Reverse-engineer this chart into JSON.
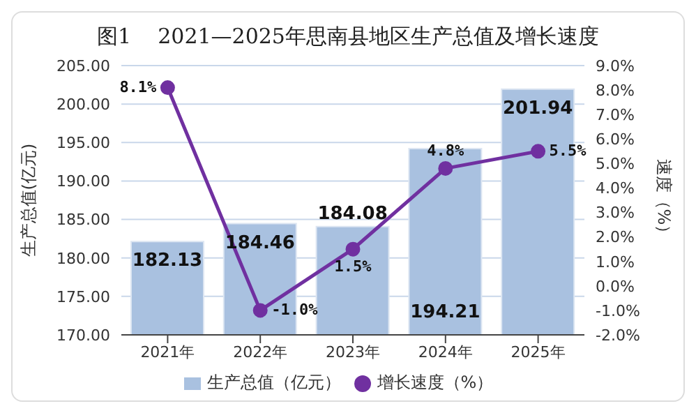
{
  "chart_data": {
    "type": "bar",
    "title": "图1    2021—2025年思南县地区生产总值及增长速度",
    "categories": [
      "2021年",
      "2022年",
      "2023年",
      "2024年",
      "2025年"
    ],
    "series": [
      {
        "name": "生产总值（亿元）",
        "color": "#a9c1e0",
        "values": [
          182.13,
          184.46,
          184.08,
          194.21,
          201.94
        ],
        "value_labels": [
          "182.13",
          "184.46",
          "184.08",
          "194.21",
          "201.94"
        ]
      },
      {
        "name": "增长速度（%）",
        "type": "line",
        "axis": "y2",
        "color": "#7030a0",
        "values": [
          8.1,
          -1.0,
          1.5,
          4.8,
          5.5
        ],
        "value_labels": [
          "8.1%",
          "-1.0%",
          "1.5%",
          "4.8%",
          "5.5%"
        ]
      }
    ],
    "ylabel": "生产总值(亿元)",
    "y2label": "速度（%）",
    "ylim": [
      170,
      205
    ],
    "yticks": [
      {
        "value": 170,
        "label": "170.00"
      },
      {
        "value": 175,
        "label": "175.00"
      },
      {
        "value": 180,
        "label": "180.00"
      },
      {
        "value": 185,
        "label": "185.00"
      },
      {
        "value": 190,
        "label": "190.00"
      },
      {
        "value": 195,
        "label": "195.00"
      },
      {
        "value": 200,
        "label": "200.00"
      },
      {
        "value": 205,
        "label": "205.00"
      }
    ],
    "y2lim": [
      -2,
      9
    ],
    "y2ticks": [
      {
        "value": -2,
        "label": "-2.0%"
      },
      {
        "value": -1,
        "label": "-1.0%"
      },
      {
        "value": 0,
        "label": "0.0%"
      },
      {
        "value": 1,
        "label": "1.0%"
      },
      {
        "value": 2,
        "label": "2.0%"
      },
      {
        "value": 3,
        "label": "3.0%"
      },
      {
        "value": 4,
        "label": "4.0%"
      },
      {
        "value": 5,
        "label": "5.0%"
      },
      {
        "value": 6,
        "label": "6.0%"
      },
      {
        "value": 7,
        "label": "7.0%"
      },
      {
        "value": 8,
        "label": "8.0%"
      },
      {
        "value": 9,
        "label": "9.0%"
      }
    ],
    "grid": "y",
    "legend": "bottom",
    "marker": "circle",
    "line_style": "solid"
  }
}
